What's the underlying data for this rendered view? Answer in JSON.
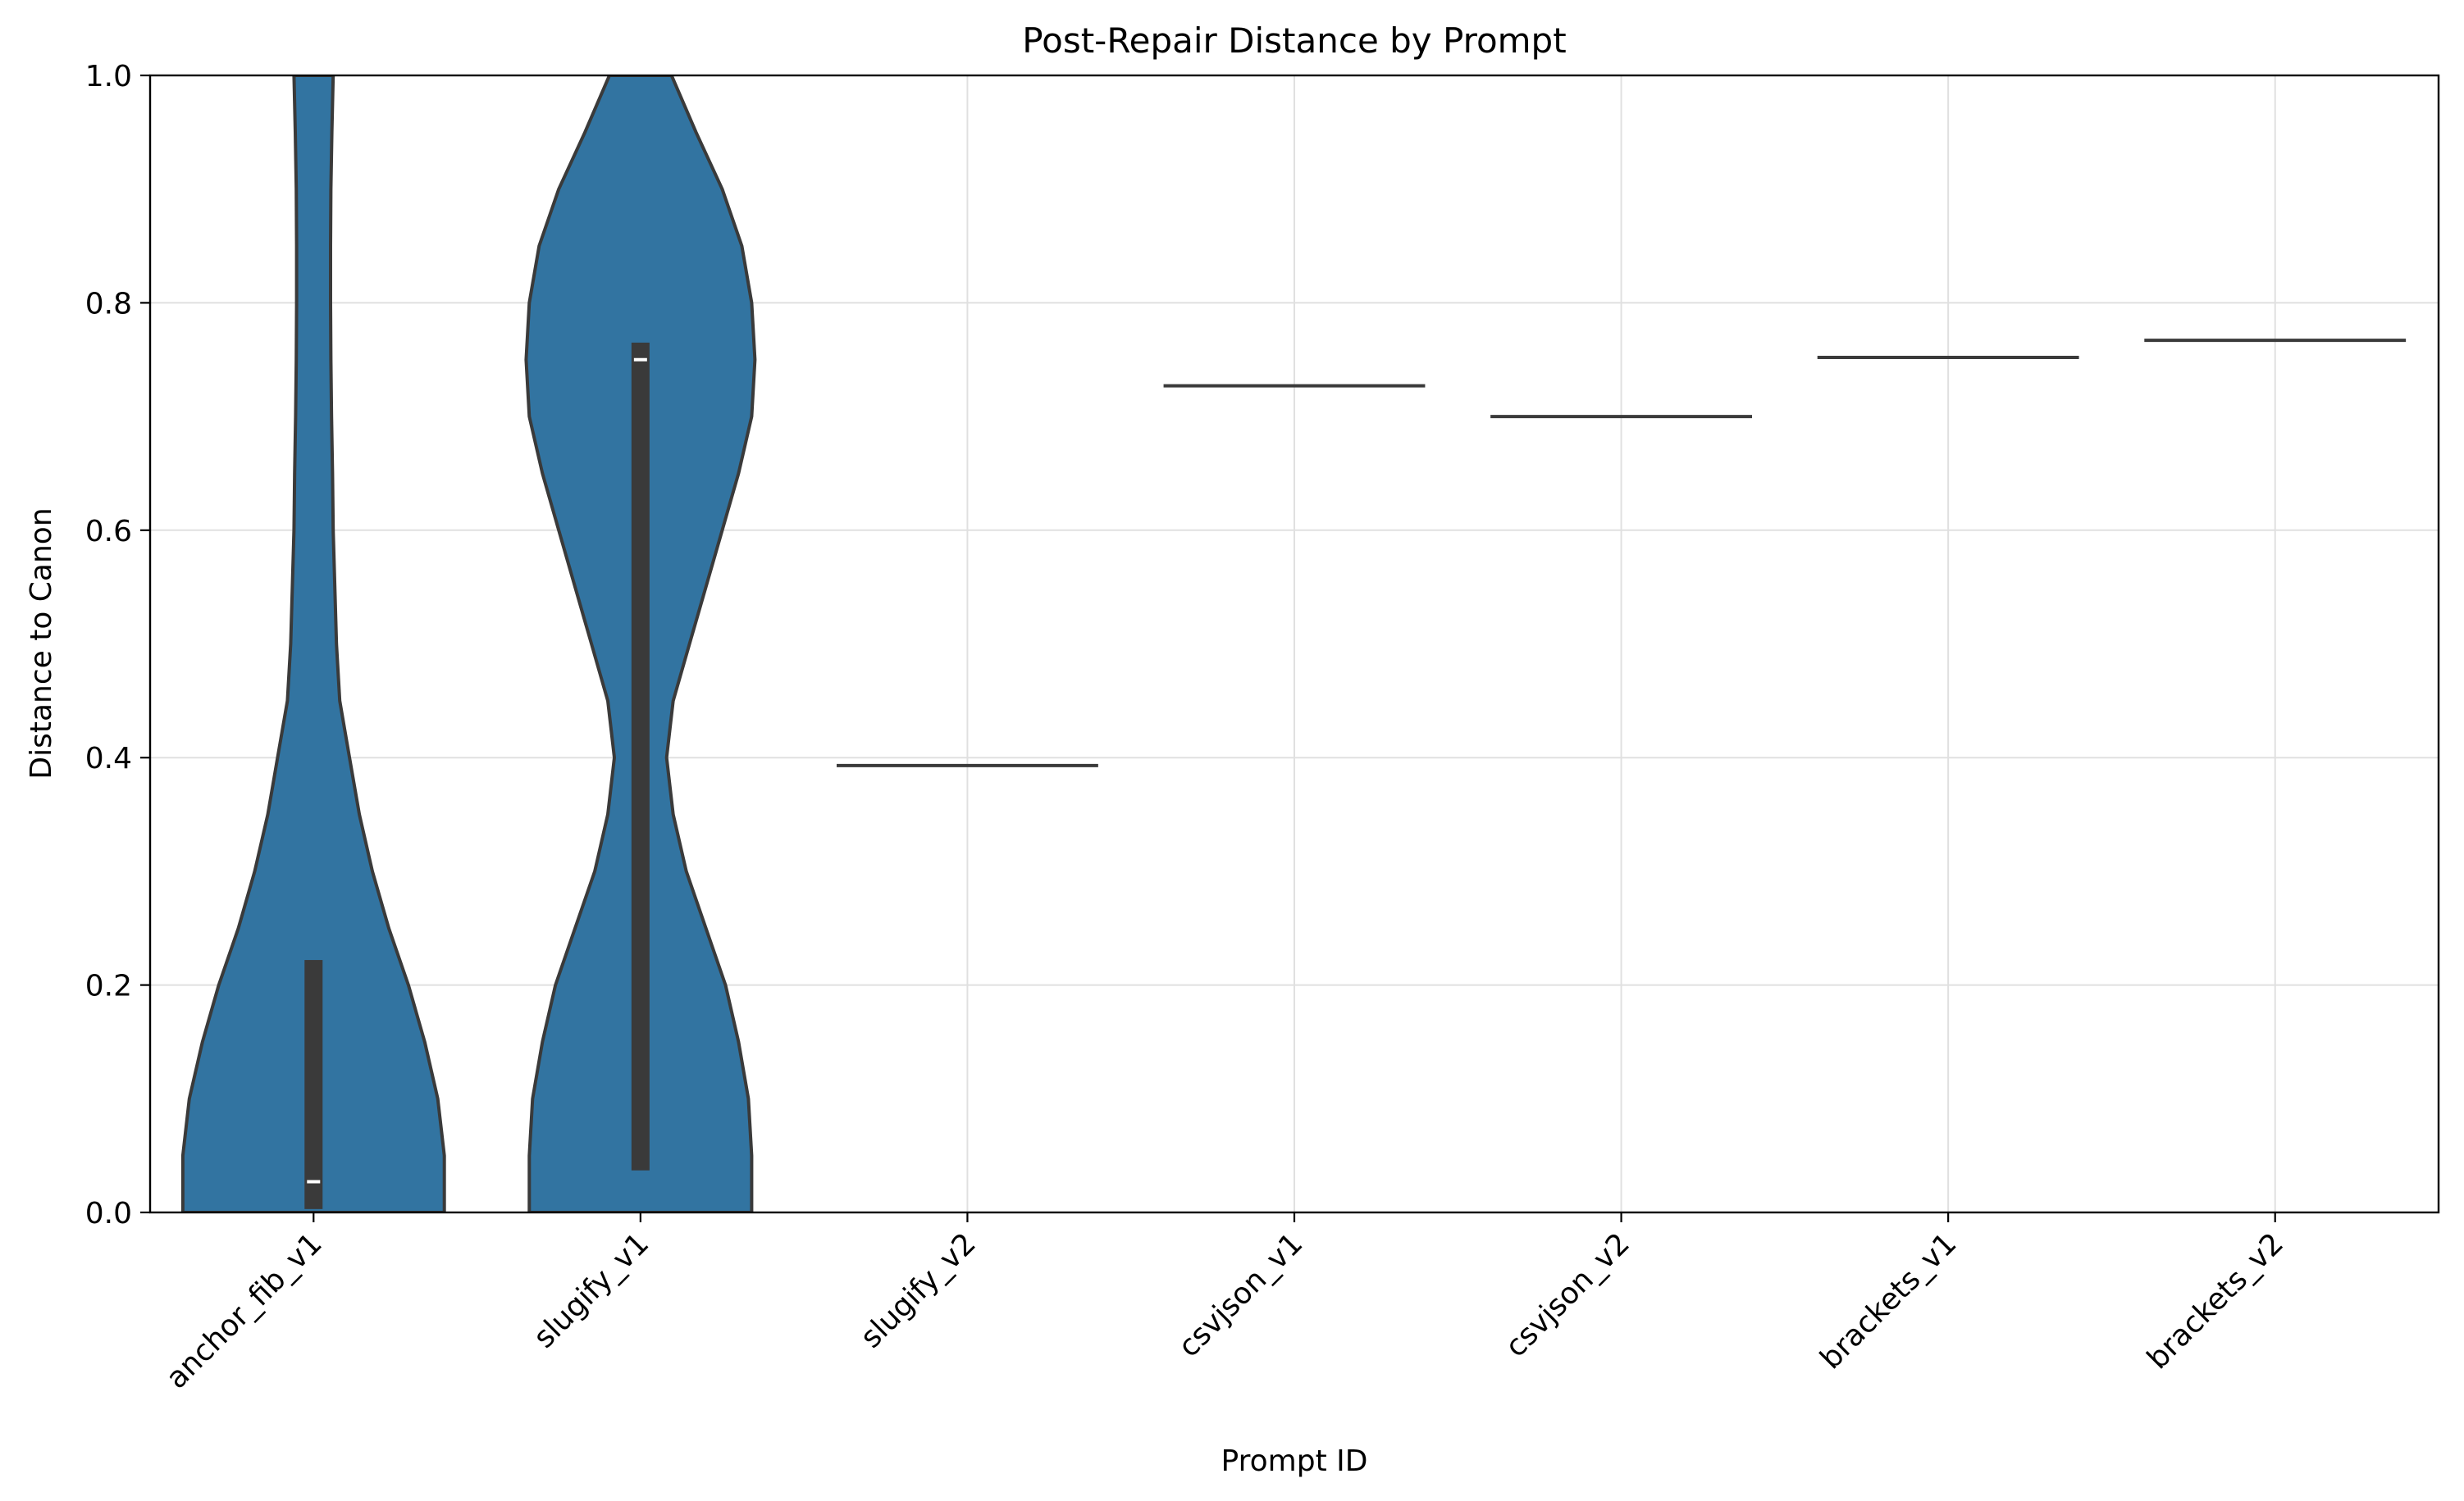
{
  "chart_data": {
    "type": "violin",
    "title": "Post-Repair Distance by Prompt",
    "xlabel": "Prompt ID",
    "ylabel": "Distance to Canon",
    "ylim": [
      0,
      1.0
    ],
    "yticks": [
      0.0,
      0.2,
      0.4,
      0.6,
      0.8,
      1.0
    ],
    "ytick_labels": [
      "0.0",
      "0.2",
      "0.4",
      "0.6",
      "0.8",
      "1.0"
    ],
    "grid": true,
    "legend": "none",
    "colors": {
      "fill": "#3274a1",
      "edge": "#3a3a3a",
      "box": "#3a3a3a",
      "median": "#ffffff",
      "grid": "#e0e0e0"
    },
    "categories": [
      "anchor_fib_v1",
      "slugify_v1",
      "slugify_v2",
      "csvjson_v1",
      "csvjson_v2",
      "brackets_v1",
      "brackets_v2"
    ],
    "violins": [
      {
        "category": "anchor_fib_v1",
        "median": 0.027,
        "q1": 0.003,
        "q3": 0.222,
        "profile": [
          [
            0.0,
            0.4
          ],
          [
            0.05,
            0.4
          ],
          [
            0.1,
            0.38
          ],
          [
            0.15,
            0.34
          ],
          [
            0.2,
            0.29
          ],
          [
            0.25,
            0.23
          ],
          [
            0.3,
            0.18
          ],
          [
            0.35,
            0.14
          ],
          [
            0.4,
            0.11
          ],
          [
            0.45,
            0.08
          ],
          [
            0.5,
            0.07
          ],
          [
            0.55,
            0.065
          ],
          [
            0.6,
            0.06
          ],
          [
            0.65,
            0.058
          ],
          [
            0.7,
            0.055
          ],
          [
            0.75,
            0.053
          ],
          [
            0.8,
            0.052
          ],
          [
            0.85,
            0.052
          ],
          [
            0.9,
            0.053
          ],
          [
            0.95,
            0.056
          ],
          [
            1.0,
            0.06
          ]
        ]
      },
      {
        "category": "slugify_v1",
        "median": 0.75,
        "q1": 0.037,
        "q3": 0.765,
        "profile": [
          [
            0.0,
            0.34
          ],
          [
            0.05,
            0.34
          ],
          [
            0.1,
            0.33
          ],
          [
            0.15,
            0.3
          ],
          [
            0.2,
            0.26
          ],
          [
            0.25,
            0.2
          ],
          [
            0.3,
            0.14
          ],
          [
            0.35,
            0.1
          ],
          [
            0.4,
            0.08
          ],
          [
            0.45,
            0.1
          ],
          [
            0.5,
            0.15
          ],
          [
            0.55,
            0.2
          ],
          [
            0.6,
            0.25
          ],
          [
            0.65,
            0.3
          ],
          [
            0.7,
            0.34
          ],
          [
            0.75,
            0.35
          ],
          [
            0.8,
            0.34
          ],
          [
            0.85,
            0.31
          ],
          [
            0.9,
            0.25
          ],
          [
            0.95,
            0.17
          ],
          [
            1.0,
            0.095
          ]
        ]
      },
      {
        "category": "slugify_v2",
        "single_value": 0.393
      },
      {
        "category": "csvjson_v1",
        "single_value": 0.727
      },
      {
        "category": "csvjson_v2",
        "single_value": 0.7
      },
      {
        "category": "brackets_v1",
        "single_value": 0.752
      },
      {
        "category": "brackets_v2",
        "single_value": 0.767
      }
    ]
  }
}
